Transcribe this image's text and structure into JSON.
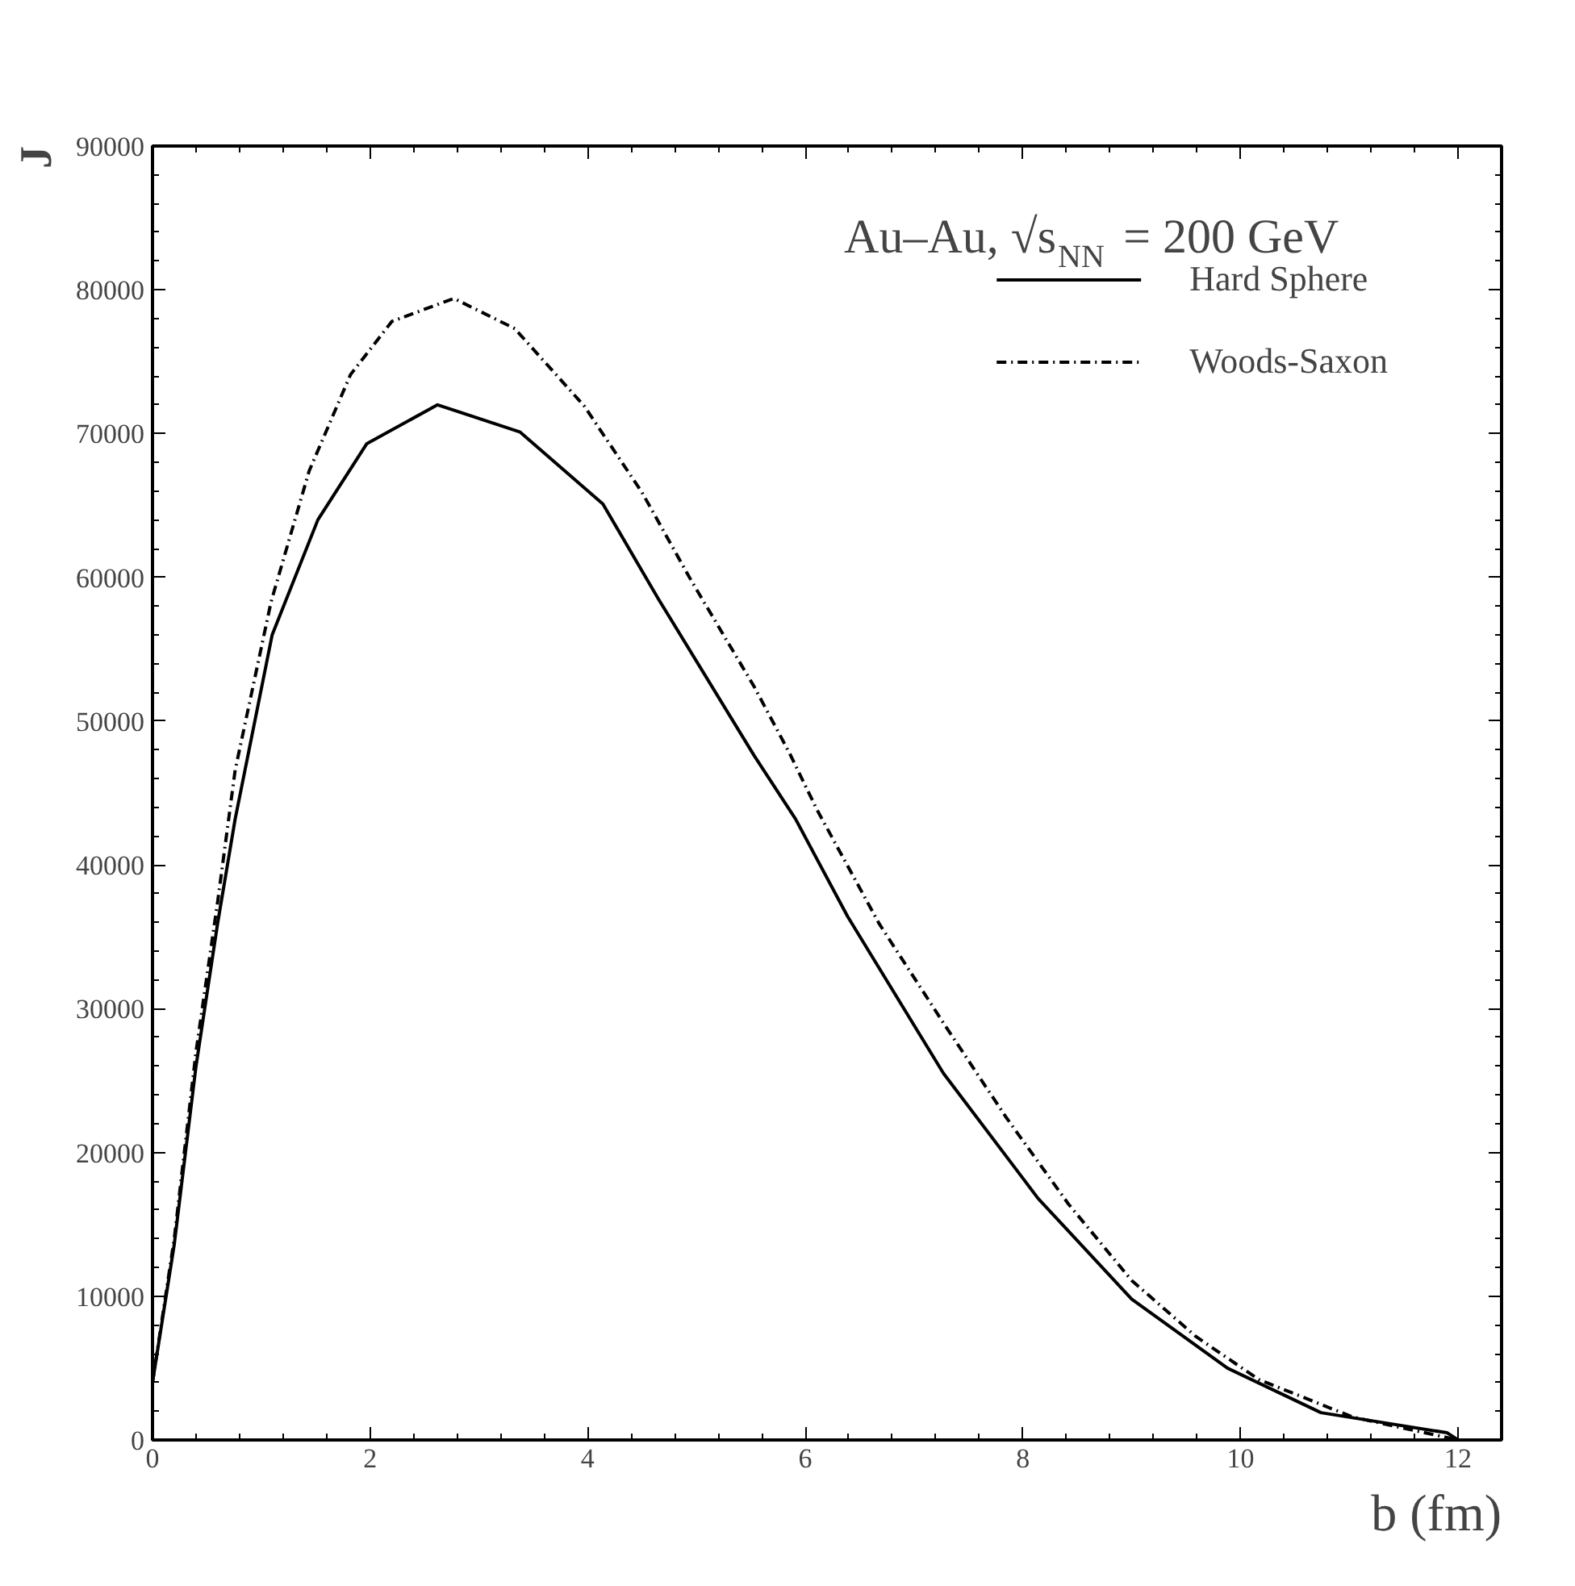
{
  "chart_data": {
    "type": "line",
    "xlabel": "b (fm)",
    "ylabel": "J",
    "annotations": [
      "Au–Au, √s$_{NN}$ = 200 GeV"
    ],
    "xlim": [
      0,
      12.4
    ],
    "ylim": [
      0,
      90000
    ],
    "xticks": [
      0,
      2,
      4,
      6,
      8,
      10,
      12
    ],
    "yticks": [
      0,
      10000,
      20000,
      30000,
      40000,
      50000,
      60000,
      70000,
      80000,
      90000
    ],
    "grid": false,
    "legend": "top right",
    "marker": "none",
    "series": [
      {
        "name": "Hard Sphere",
        "color": "#000000",
        "line_style": "solid",
        "x": [
          0,
          0.2,
          0.4,
          0.6,
          0.76,
          1.1,
          1.52,
          1.97,
          2.62,
          3.38,
          4.14,
          4.65,
          5.53,
          5.91,
          6.39,
          7.27,
          8.14,
          9.0,
          9.88,
          10.74,
          11.9,
          12.0
        ],
        "values": [
          4000,
          13600,
          26000,
          36000,
          43200,
          56000,
          64000,
          69300,
          72000,
          70100,
          65100,
          58500,
          47600,
          43200,
          36400,
          25500,
          16800,
          9800,
          5000,
          1900,
          500,
          0
        ]
      },
      {
        "name": "Woods-Saxon",
        "color": "#000000",
        "line_style": "dashed",
        "x": [
          0,
          0.2,
          0.4,
          0.6,
          0.76,
          1.09,
          1.44,
          1.82,
          2.2,
          2.77,
          3.33,
          3.97,
          4.5,
          4.95,
          5.53,
          5.86,
          6.11,
          6.68,
          7.27,
          7.85,
          8.42,
          9.0,
          9.59,
          10.17,
          11.03,
          12.0
        ],
        "values": [
          4000,
          14000,
          27000,
          37500,
          46600,
          58300,
          67400,
          74100,
          77800,
          79400,
          77300,
          71900,
          65900,
          59800,
          52400,
          47700,
          43800,
          35900,
          29000,
          22400,
          16400,
          11100,
          7200,
          4200,
          1600,
          0
        ]
      }
    ]
  }
}
